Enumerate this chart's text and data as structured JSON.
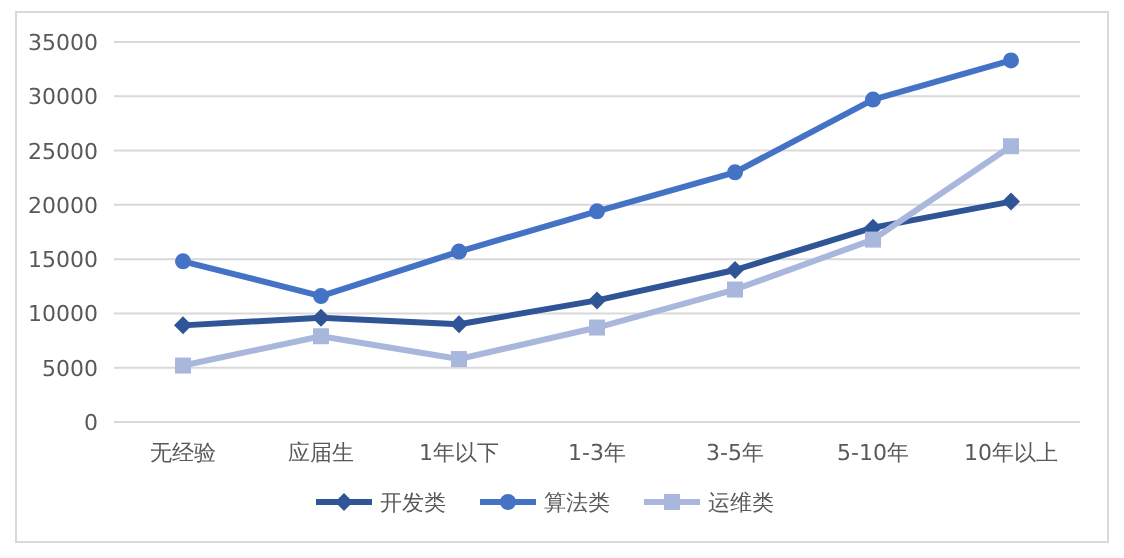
{
  "chart_data": {
    "type": "line",
    "categories": [
      "无经验",
      "应届生",
      "1年以下",
      "1-3年",
      "3-5年",
      "5-10年",
      "10年以上"
    ],
    "series": [
      {
        "name": "开发类",
        "color": "#2f5597",
        "marker": "diamond",
        "values": [
          8900,
          9600,
          9000,
          11200,
          14000,
          17900,
          20300
        ]
      },
      {
        "name": "算法类",
        "color": "#4472c4",
        "marker": "circle",
        "values": [
          14800,
          11600,
          15700,
          19400,
          23000,
          29700,
          33300
        ]
      },
      {
        "name": "运维类",
        "color": "#a9b7dc",
        "marker": "square",
        "values": [
          5200,
          7900,
          5800,
          8700,
          12200,
          16800,
          25400
        ]
      }
    ],
    "ylim": [
      0,
      35000
    ],
    "yticks": [
      0,
      5000,
      10000,
      15000,
      20000,
      25000,
      30000,
      35000
    ],
    "grid": "y",
    "legend": "bottom",
    "line_style": "solid"
  }
}
